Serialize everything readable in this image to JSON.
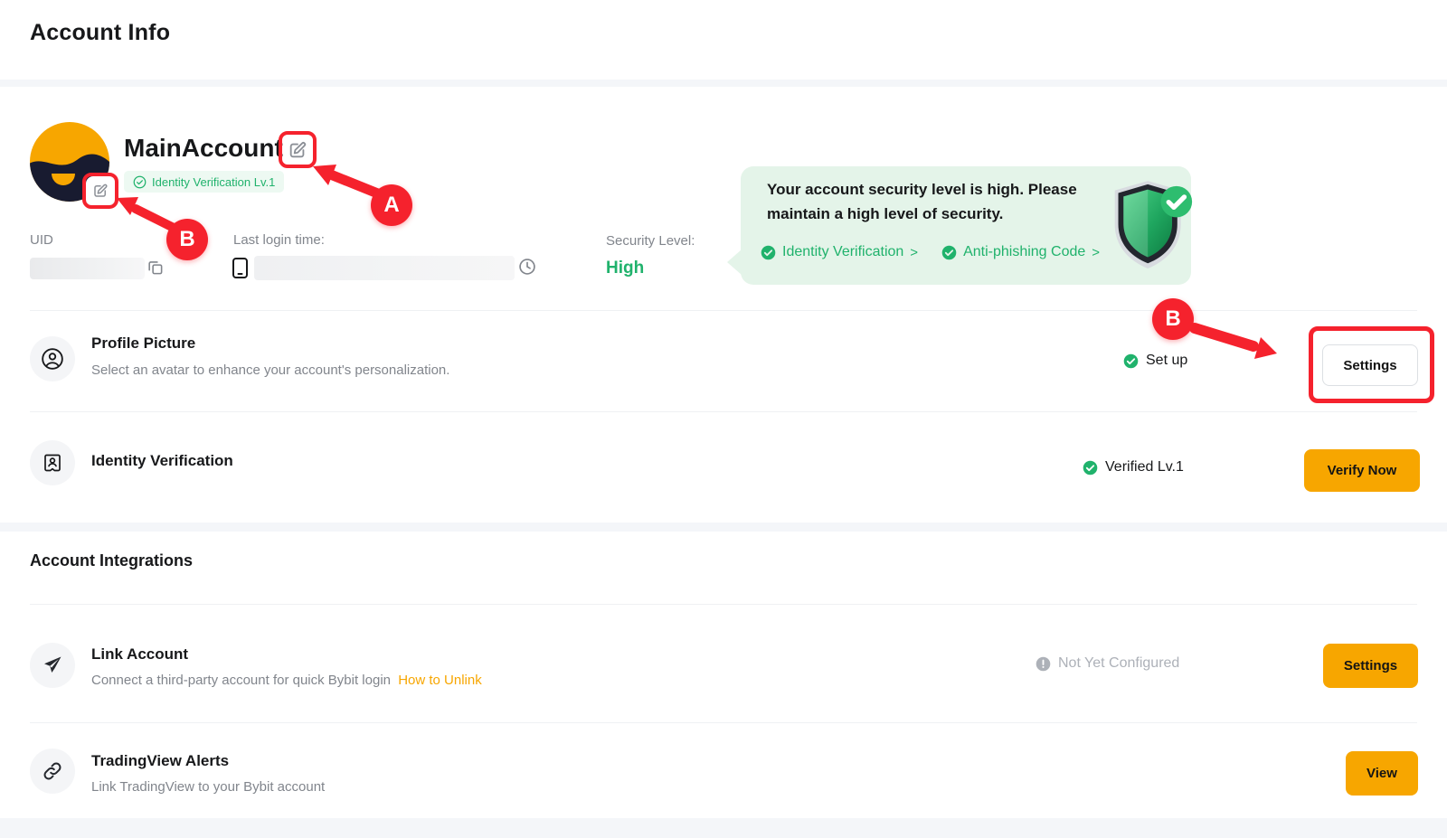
{
  "header": {
    "title": "Account Info"
  },
  "profile": {
    "name": "MainAccount",
    "verification_badge": "Identity Verification Lv.1",
    "uid_label": "UID",
    "last_login_label": "Last login time:",
    "security_level_label": "Security Level:",
    "security_level_value": "High"
  },
  "security_banner": {
    "message_line1": "Your account security level is high. Please",
    "message_line2": "maintain a high level of security.",
    "links": [
      {
        "label": "Identity Verification",
        "chevron": ">"
      },
      {
        "label": "Anti-phishing Code",
        "chevron": ">"
      }
    ]
  },
  "account_rows": [
    {
      "title": "Profile Picture",
      "subtitle": "Select an avatar to enhance your account's personalization.",
      "status": "Set up",
      "action": "Settings"
    },
    {
      "title": "Identity Verification",
      "status": "Verified Lv.1",
      "action": "Verify Now"
    }
  ],
  "integrations": {
    "heading": "Account Integrations",
    "rows": [
      {
        "title": "Link Account",
        "subtitle": "Connect a third-party account for quick Bybit login",
        "link": "How to Unlink",
        "status": "Not Yet Configured",
        "action": "Settings"
      },
      {
        "title": "TradingView Alerts",
        "subtitle": "Link TradingView to your Bybit account",
        "action": "View"
      }
    ]
  },
  "annotations": {
    "a": "A",
    "b": "B"
  },
  "colors": {
    "brand_orange": "#F7A600",
    "green": "#20B26C",
    "annotation_red": "#F5222D",
    "banner_bg": "#E4F4E9"
  }
}
